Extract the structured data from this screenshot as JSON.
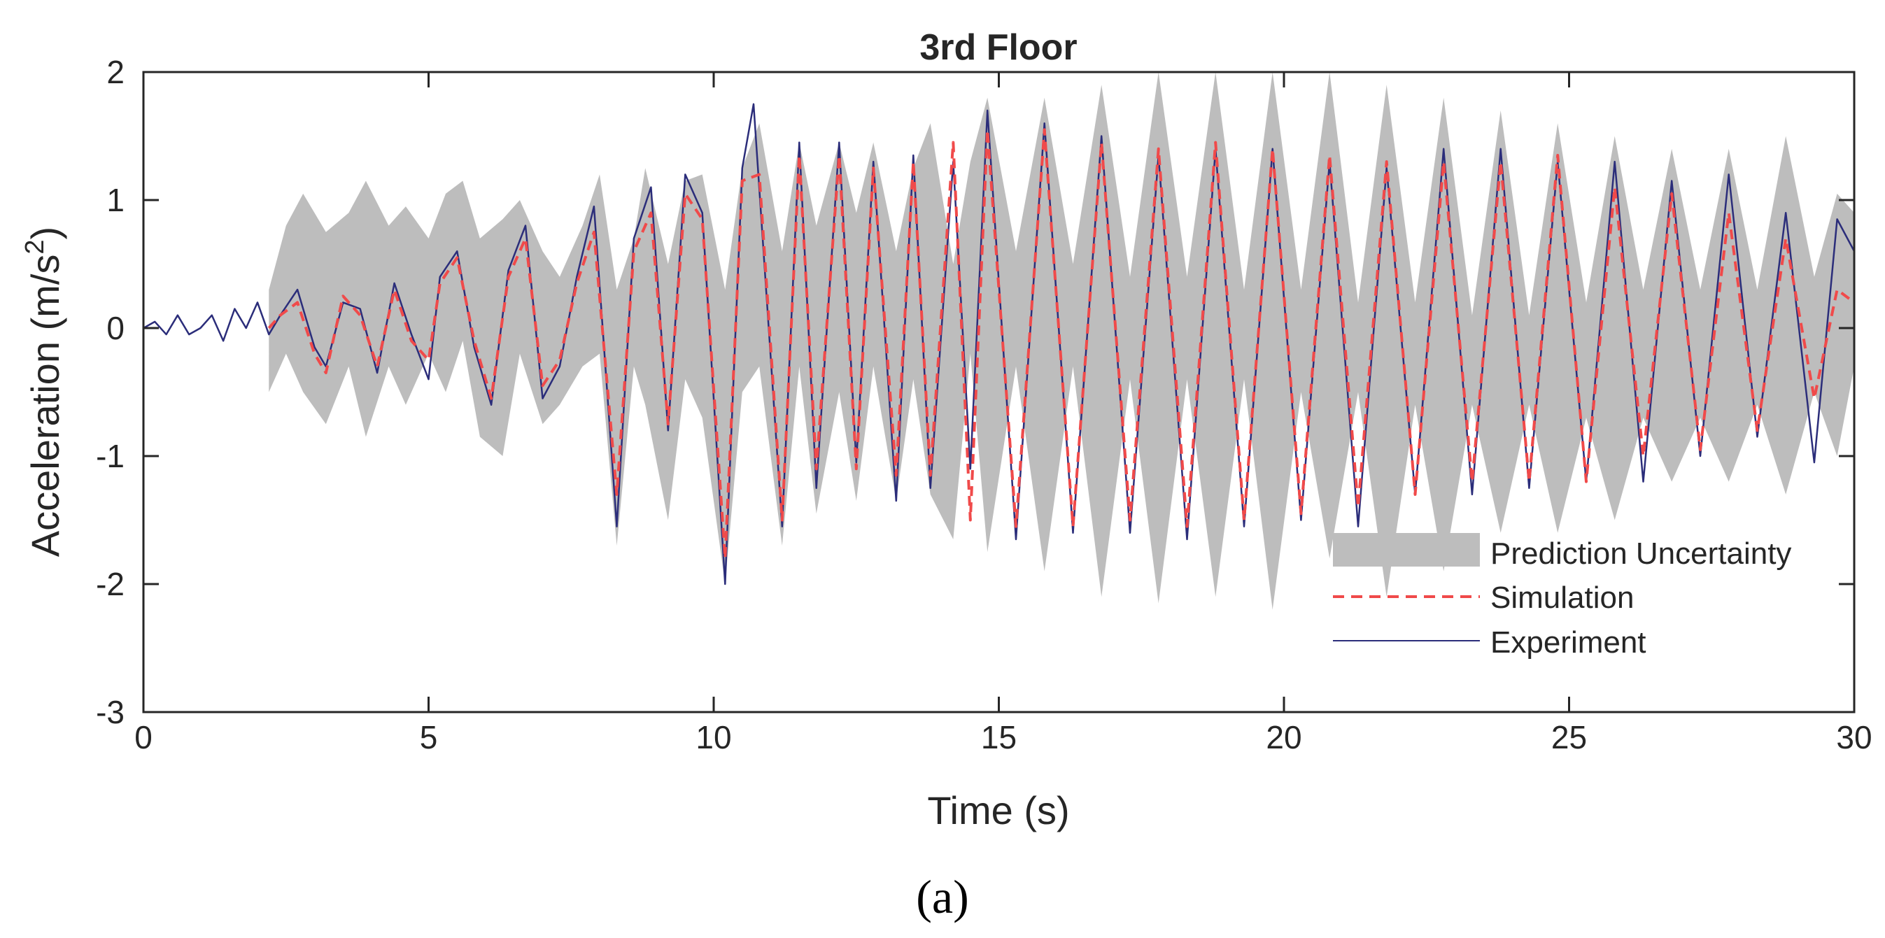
{
  "chart_data": {
    "type": "line",
    "title": "3rd Floor",
    "xlabel": "Time (s)",
    "ylabel_main": "Acceleration (m/s",
    "ylabel_sup": "2",
    "ylabel_close": ")",
    "xlim": [
      0,
      30
    ],
    "ylim": [
      -3,
      2
    ],
    "xticks": [
      0,
      5,
      10,
      15,
      20,
      25,
      30
    ],
    "xtick_labels": [
      "0",
      "5",
      "10",
      "15",
      "20",
      "25",
      "30"
    ],
    "yticks": [
      -3,
      -2,
      -1,
      0,
      1,
      2
    ],
    "ytick_labels": [
      "-3",
      "-2",
      "-1",
      "0",
      "1",
      "2"
    ],
    "grid": false,
    "legend_position": "bottom-right",
    "panel_label": "(a)",
    "colors": {
      "uncertainty": "#bdbdbd",
      "simulation": "#f04a4a",
      "experiment": "#2b2d7a",
      "axes": "#262626"
    },
    "series": [
      {
        "name": "Prediction Uncertainty",
        "style": "band",
        "x": [
          2.2,
          2.5,
          2.8,
          3.2,
          3.6,
          3.9,
          4.3,
          4.6,
          5.0,
          5.3,
          5.6,
          5.9,
          6.3,
          6.6,
          7.0,
          7.3,
          7.7,
          8.0,
          8.3,
          8.6,
          8.8,
          9.2,
          9.5,
          9.8,
          10.2,
          10.5,
          10.8,
          11.2,
          11.5,
          11.8,
          12.2,
          12.5,
          12.8,
          13.2,
          13.5,
          13.8,
          14.2,
          14.5,
          14.8,
          15.3,
          15.8,
          16.3,
          16.8,
          17.3,
          17.8,
          18.3,
          18.8,
          19.3,
          19.8,
          20.3,
          20.8,
          21.3,
          21.8,
          22.3,
          22.8,
          23.3,
          23.8,
          24.3,
          24.8,
          25.3,
          25.8,
          26.3,
          26.8,
          27.3,
          27.8,
          28.3,
          28.8,
          29.3,
          29.7,
          30.0
        ],
        "upper": [
          0.3,
          0.8,
          1.05,
          0.75,
          0.9,
          1.15,
          0.8,
          0.95,
          0.7,
          1.05,
          1.15,
          0.7,
          0.85,
          1.0,
          0.6,
          0.4,
          0.8,
          1.2,
          0.3,
          0.7,
          1.25,
          0.5,
          1.15,
          1.2,
          0.3,
          1.25,
          1.6,
          0.6,
          1.45,
          0.8,
          1.45,
          0.9,
          1.45,
          0.6,
          1.25,
          1.6,
          0.5,
          1.3,
          1.8,
          0.6,
          1.8,
          0.5,
          1.9,
          0.4,
          2.0,
          0.4,
          2.0,
          0.3,
          2.0,
          0.3,
          2.0,
          0.2,
          1.9,
          0.2,
          1.8,
          0.1,
          1.7,
          0.1,
          1.6,
          0.2,
          1.5,
          0.3,
          1.4,
          0.3,
          1.4,
          0.3,
          1.5,
          0.4,
          1.05,
          0.9
        ],
        "lower": [
          -0.5,
          -0.2,
          -0.5,
          -0.75,
          -0.3,
          -0.85,
          -0.3,
          -0.6,
          -0.2,
          -0.5,
          -0.1,
          -0.85,
          -1.0,
          -0.2,
          -0.75,
          -0.6,
          -0.3,
          -0.2,
          -1.7,
          -0.3,
          -0.6,
          -1.5,
          -0.4,
          -0.7,
          -2.0,
          -0.5,
          -0.3,
          -1.7,
          -0.3,
          -1.45,
          -0.5,
          -1.35,
          -0.3,
          -1.35,
          -0.4,
          -1.3,
          -1.65,
          -0.2,
          -1.75,
          -0.3,
          -1.9,
          -0.3,
          -2.1,
          -0.4,
          -2.15,
          -0.4,
          -2.1,
          -0.4,
          -2.2,
          -0.5,
          -1.8,
          -0.5,
          -2.1,
          -0.6,
          -1.9,
          -0.6,
          -1.6,
          -0.6,
          -1.6,
          -0.7,
          -1.5,
          -0.7,
          -1.2,
          -0.7,
          -1.2,
          -0.6,
          -1.3,
          -0.5,
          -1.0,
          -0.3
        ]
      },
      {
        "name": "Simulation",
        "style": "dashed",
        "x": [
          2.2,
          2.4,
          2.7,
          3.0,
          3.2,
          3.5,
          3.8,
          4.1,
          4.4,
          4.7,
          5.0,
          5.2,
          5.5,
          5.8,
          6.1,
          6.4,
          6.7,
          7.0,
          7.3,
          7.6,
          7.9,
          8.3,
          8.6,
          8.9,
          9.2,
          9.5,
          9.8,
          10.2,
          10.5,
          10.8,
          11.2,
          11.5,
          11.8,
          12.2,
          12.5,
          12.8,
          13.2,
          13.5,
          13.8,
          14.2,
          14.5,
          14.8,
          15.3,
          15.8,
          16.3,
          16.8,
          17.3,
          17.8,
          18.3,
          18.8,
          19.3,
          19.8,
          20.3,
          20.8,
          21.3,
          21.8,
          22.3,
          22.8,
          23.3,
          23.8,
          24.3,
          24.8,
          25.3,
          25.8,
          26.3,
          26.8,
          27.3,
          27.8,
          28.3,
          28.8,
          29.3,
          29.7,
          30.0
        ],
        "y": [
          0.0,
          0.1,
          0.2,
          -0.2,
          -0.35,
          0.25,
          0.1,
          -0.3,
          0.3,
          -0.1,
          -0.25,
          0.35,
          0.55,
          -0.1,
          -0.55,
          0.4,
          0.7,
          -0.45,
          -0.25,
          0.35,
          0.75,
          -1.3,
          0.6,
          0.9,
          -0.75,
          1.05,
          0.85,
          -1.8,
          1.15,
          1.2,
          -1.5,
          1.35,
          -1.1,
          1.35,
          -1.1,
          1.25,
          -1.15,
          1.3,
          -1.15,
          1.45,
          -1.5,
          1.55,
          -1.55,
          1.55,
          -1.55,
          1.45,
          -1.5,
          1.4,
          -1.55,
          1.45,
          -1.5,
          1.4,
          -1.45,
          1.35,
          -1.4,
          1.3,
          -1.3,
          1.3,
          -1.2,
          1.3,
          -1.2,
          1.35,
          -1.2,
          1.1,
          -1.0,
          1.05,
          -0.95,
          0.9,
          -0.8,
          0.7,
          -0.55,
          0.3,
          0.2
        ]
      },
      {
        "name": "Experiment",
        "style": "solid",
        "x": [
          0.0,
          0.2,
          0.4,
          0.6,
          0.8,
          1.0,
          1.2,
          1.4,
          1.6,
          1.8,
          2.0,
          2.2,
          2.4,
          2.7,
          3.0,
          3.2,
          3.5,
          3.8,
          4.1,
          4.4,
          4.7,
          5.0,
          5.2,
          5.5,
          5.8,
          6.1,
          6.4,
          6.7,
          7.0,
          7.3,
          7.6,
          7.9,
          8.3,
          8.6,
          8.9,
          9.2,
          9.5,
          9.8,
          10.2,
          10.5,
          10.7,
          11.2,
          11.5,
          11.8,
          12.2,
          12.5,
          12.8,
          13.2,
          13.5,
          13.8,
          14.2,
          14.5,
          14.8,
          15.3,
          15.8,
          16.3,
          16.8,
          17.3,
          17.8,
          18.3,
          18.8,
          19.3,
          19.8,
          20.3,
          20.8,
          21.3,
          21.8,
          22.3,
          22.8,
          23.3,
          23.8,
          24.3,
          24.8,
          25.3,
          25.8,
          26.3,
          26.8,
          27.3,
          27.8,
          28.3,
          28.8,
          29.3,
          29.7,
          30.0
        ],
        "y": [
          0.0,
          0.05,
          -0.05,
          0.1,
          -0.05,
          0.0,
          0.1,
          -0.1,
          0.15,
          0.0,
          0.2,
          -0.05,
          0.1,
          0.3,
          -0.15,
          -0.3,
          0.2,
          0.15,
          -0.35,
          0.35,
          -0.05,
          -0.4,
          0.4,
          0.6,
          -0.15,
          -0.6,
          0.45,
          0.8,
          -0.55,
          -0.3,
          0.4,
          0.95,
          -1.55,
          0.7,
          1.1,
          -0.8,
          1.2,
          0.9,
          -2.0,
          1.25,
          1.75,
          -1.55,
          1.45,
          -1.25,
          1.45,
          -1.05,
          1.3,
          -1.35,
          1.35,
          -1.25,
          1.3,
          -1.1,
          1.7,
          -1.65,
          1.6,
          -1.6,
          1.5,
          -1.6,
          1.35,
          -1.65,
          1.4,
          -1.55,
          1.4,
          -1.5,
          1.3,
          -1.55,
          1.25,
          -1.3,
          1.4,
          -1.3,
          1.4,
          -1.25,
          1.3,
          -1.2,
          1.3,
          -1.2,
          1.15,
          -1.0,
          1.2,
          -0.85,
          0.9,
          -1.05,
          0.85,
          0.6
        ]
      }
    ]
  }
}
